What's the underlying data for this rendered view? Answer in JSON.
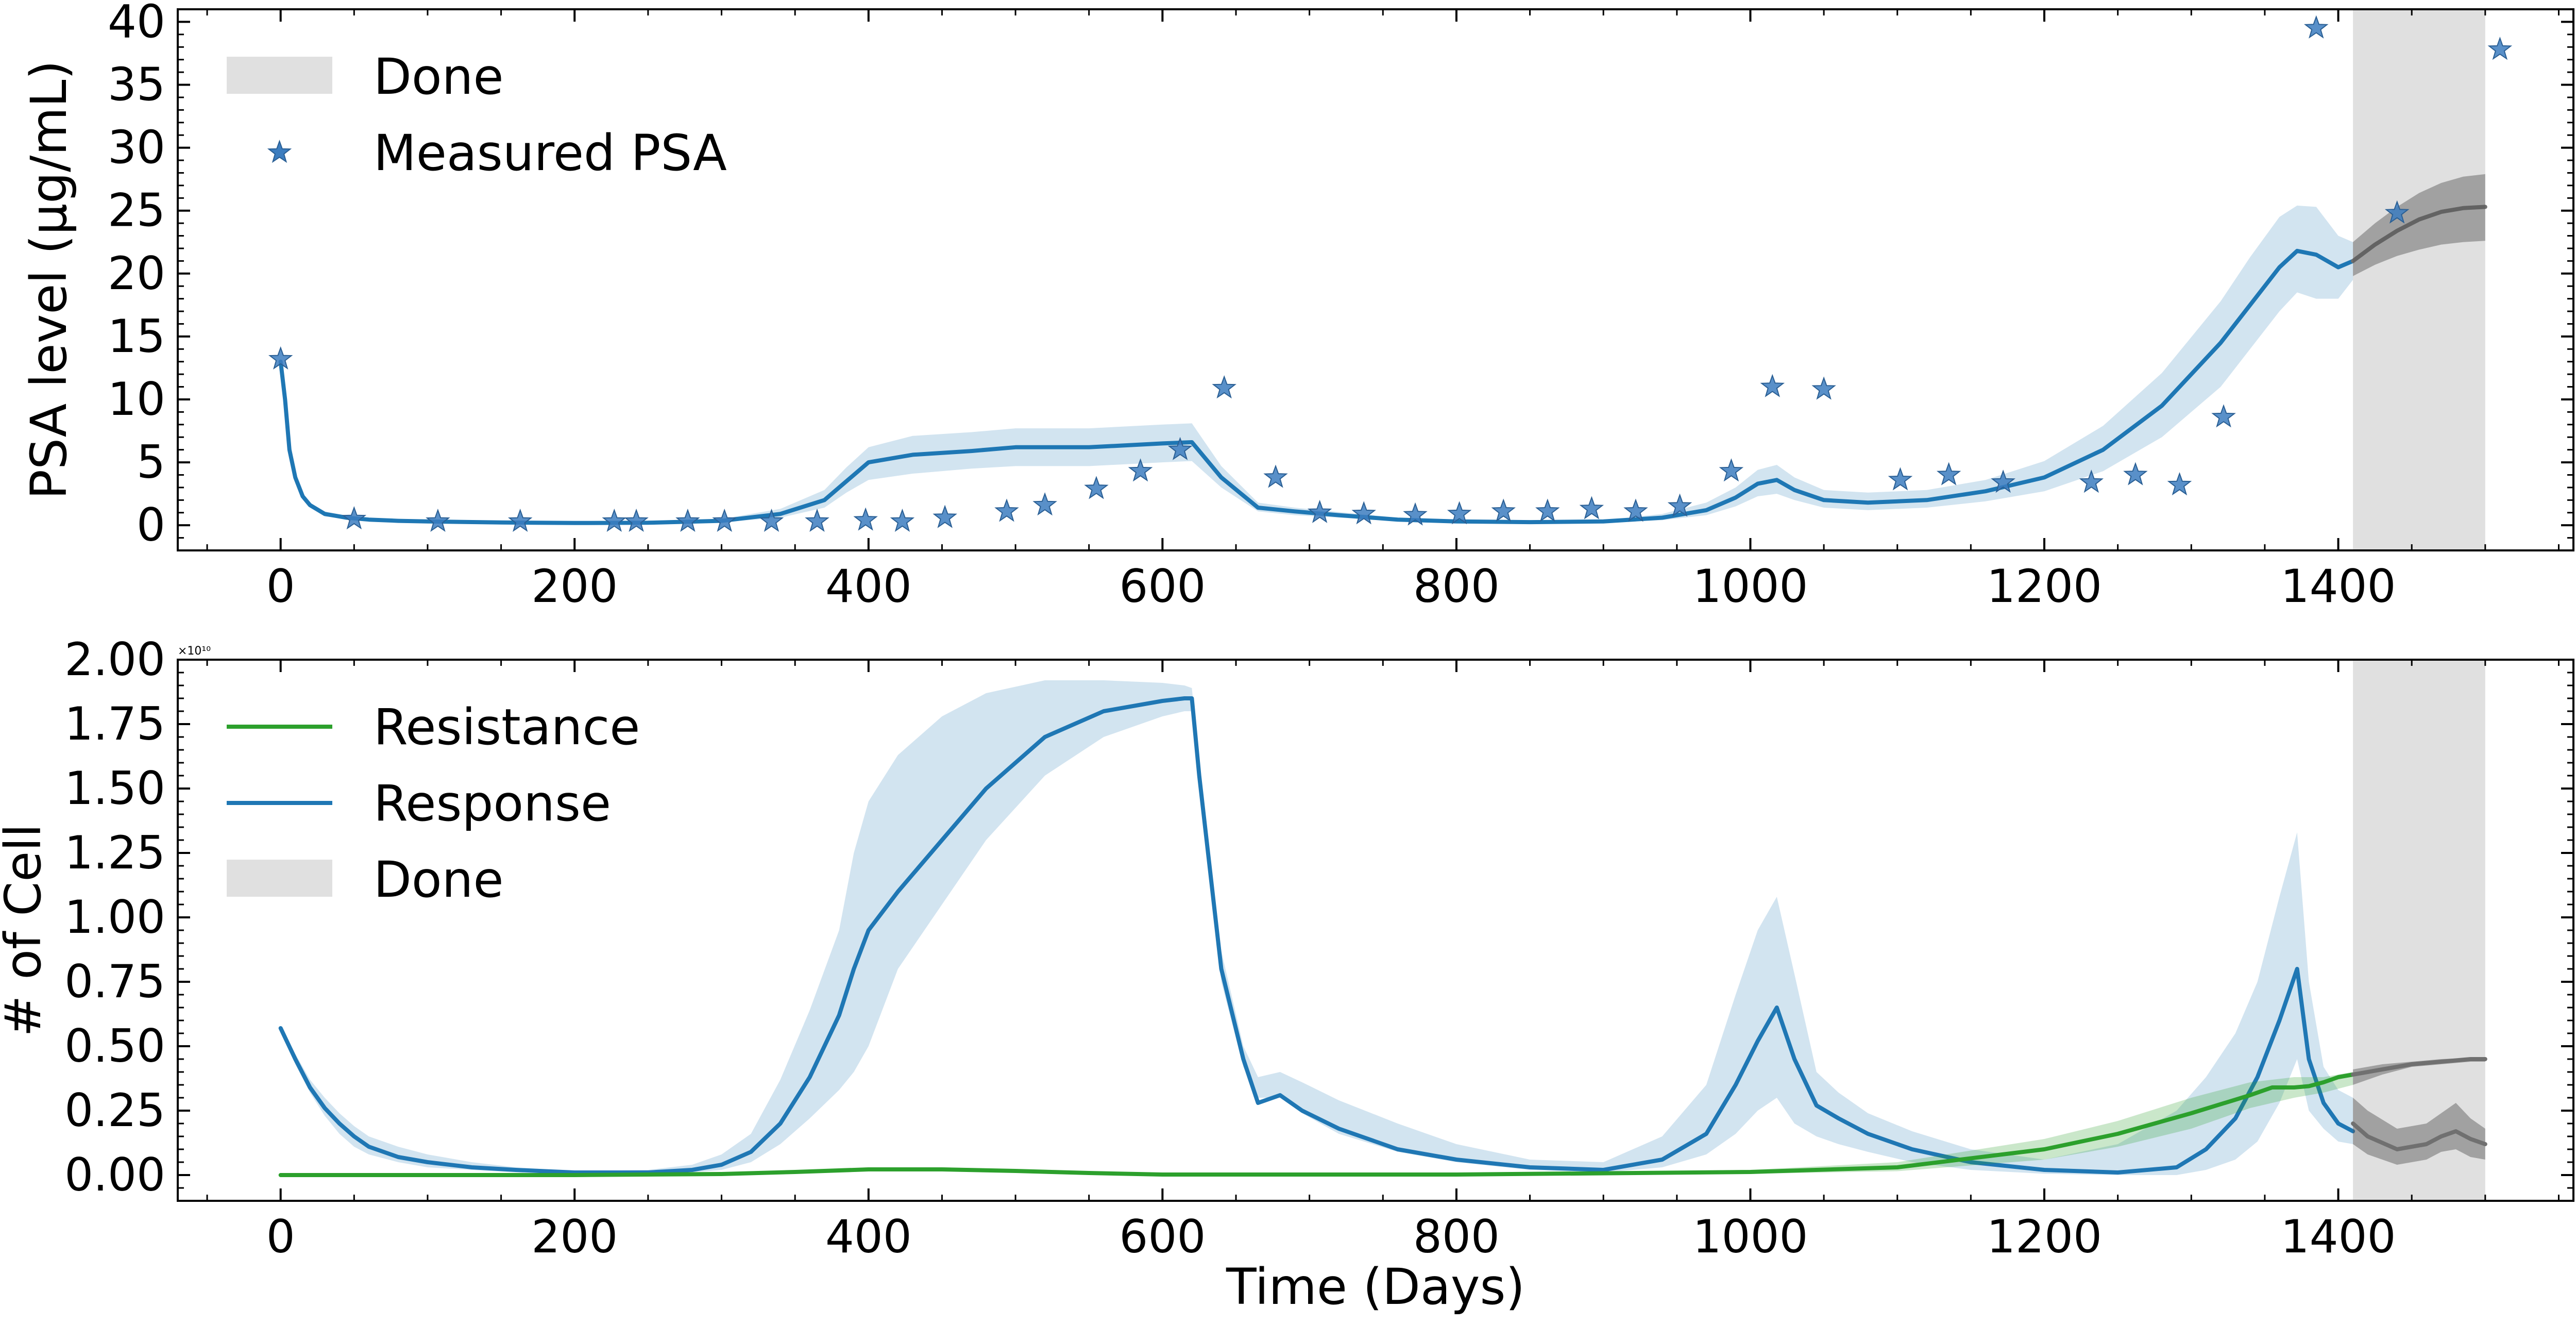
{
  "chart_data": [
    {
      "type": "line",
      "ylabel": "PSA level (μg/mL)",
      "xlabel": "",
      "xlim": [
        -70,
        1560
      ],
      "ylim": [
        -2,
        41
      ],
      "xticks": [
        0,
        200,
        400,
        600,
        800,
        1000,
        1200,
        1400
      ],
      "yticks": [
        0,
        5,
        10,
        15,
        20,
        25,
        30,
        35,
        40
      ],
      "x_tick_labels": [
        "0",
        "200",
        "400",
        "600",
        "800",
        "1000",
        "1200",
        "1400"
      ],
      "y_tick_labels": [
        "0",
        "5",
        "10",
        "15",
        "20",
        "25",
        "30",
        "35",
        "40"
      ],
      "legend_position": "upper-left",
      "legend": [
        {
          "label": "Done",
          "kind": "patch",
          "color": "#e0e0e0"
        },
        {
          "label": "Measured PSA",
          "kind": "star",
          "color": "#3c7dbf"
        }
      ],
      "done_region": {
        "x_start": 1410,
        "x_end": 1500
      },
      "series": [
        {
          "kind": "line",
          "color": "#1f77b4",
          "x": [
            0,
            3,
            6,
            10,
            15,
            20,
            30,
            45,
            60,
            80,
            100,
            150,
            200,
            250,
            300,
            340,
            370,
            385,
            400,
            430,
            470,
            500,
            550,
            600,
            620,
            640,
            665,
            690,
            720,
            760,
            800,
            850,
            900,
            940,
            970,
            990,
            1005,
            1018,
            1030,
            1050,
            1080,
            1120,
            1160,
            1200,
            1240,
            1280,
            1320,
            1340,
            1360,
            1372,
            1385,
            1400,
            1410
          ],
          "y": [
            13.0,
            10.0,
            6.0,
            3.8,
            2.3,
            1.6,
            0.9,
            0.6,
            0.45,
            0.35,
            0.3,
            0.22,
            0.18,
            0.2,
            0.35,
            0.9,
            2.0,
            3.5,
            5.0,
            5.6,
            5.9,
            6.2,
            6.2,
            6.5,
            6.6,
            3.8,
            1.4,
            1.1,
            0.8,
            0.45,
            0.3,
            0.25,
            0.3,
            0.6,
            1.2,
            2.2,
            3.3,
            3.6,
            2.8,
            2.0,
            1.8,
            2.0,
            2.7,
            3.8,
            6.0,
            9.5,
            14.5,
            17.5,
            20.5,
            21.8,
            21.5,
            20.5,
            21.0
          ]
        },
        {
          "kind": "band",
          "color": "#1f77b4",
          "opacity": 0.2,
          "x": [
            0,
            3,
            6,
            10,
            15,
            20,
            30,
            45,
            60,
            80,
            100,
            150,
            200,
            250,
            300,
            340,
            370,
            385,
            400,
            430,
            470,
            500,
            550,
            600,
            620,
            640,
            665,
            690,
            720,
            760,
            800,
            850,
            900,
            940,
            970,
            990,
            1005,
            1018,
            1030,
            1050,
            1080,
            1120,
            1160,
            1200,
            1240,
            1280,
            1320,
            1340,
            1360,
            1372,
            1385,
            1400,
            1410
          ],
          "lower": [
            12.8,
            9.8,
            5.8,
            3.6,
            2.1,
            1.4,
            0.7,
            0.5,
            0.35,
            0.25,
            0.2,
            0.15,
            0.12,
            0.14,
            0.25,
            0.6,
            1.4,
            2.6,
            3.6,
            4.1,
            4.5,
            4.7,
            4.7,
            5.0,
            5.1,
            3.0,
            1.1,
            0.8,
            0.6,
            0.35,
            0.22,
            0.18,
            0.22,
            0.4,
            0.8,
            1.5,
            2.3,
            2.5,
            2.0,
            1.4,
            1.2,
            1.4,
            1.9,
            2.7,
            4.3,
            7.0,
            11.0,
            14.0,
            17.0,
            18.5,
            18.0,
            18.0,
            19.5
          ],
          "upper": [
            13.2,
            10.2,
            6.2,
            4.0,
            2.5,
            1.8,
            1.1,
            0.75,
            0.6,
            0.45,
            0.4,
            0.3,
            0.25,
            0.28,
            0.5,
            1.3,
            2.8,
            4.6,
            6.2,
            7.1,
            7.4,
            7.7,
            7.7,
            8.0,
            8.1,
            4.7,
            1.8,
            1.4,
            1.05,
            0.6,
            0.4,
            0.35,
            0.4,
            0.9,
            1.8,
            3.0,
            4.4,
            4.8,
            3.8,
            2.8,
            2.6,
            2.8,
            3.6,
            5.1,
            7.9,
            12.1,
            17.8,
            21.3,
            24.5,
            25.4,
            25.3,
            23.0,
            22.5
          ]
        },
        {
          "kind": "line",
          "color": "#707070",
          "x": [
            1410,
            1425,
            1440,
            1455,
            1470,
            1485,
            1500
          ],
          "y": [
            21.0,
            22.3,
            23.4,
            24.3,
            24.9,
            25.2,
            25.3
          ]
        },
        {
          "kind": "band",
          "color": "#555555",
          "opacity": 0.45,
          "x": [
            1410,
            1425,
            1440,
            1455,
            1470,
            1485,
            1500
          ],
          "lower": [
            19.8,
            20.7,
            21.4,
            21.9,
            22.3,
            22.5,
            22.6
          ],
          "upper": [
            22.5,
            24.0,
            25.3,
            26.4,
            27.2,
            27.7,
            27.9
          ]
        },
        {
          "kind": "scatter",
          "marker": "star",
          "name": "Measured PSA",
          "color": "#3c7dbf",
          "x": [
            0,
            50,
            107,
            163,
            227,
            242,
            277,
            302,
            334,
            365,
            398,
            423,
            452,
            494,
            520,
            555,
            585,
            612,
            642,
            677,
            707,
            737,
            772,
            802,
            832,
            862,
            892,
            922,
            952,
            987,
            1015,
            1050,
            1102,
            1135,
            1172,
            1232,
            1262,
            1292,
            1322,
            1385,
            1440,
            1510
          ],
          "y": [
            13.2,
            0.5,
            0.3,
            0.3,
            0.3,
            0.3,
            0.3,
            0.3,
            0.3,
            0.3,
            0.4,
            0.3,
            0.6,
            1.1,
            1.6,
            2.9,
            4.3,
            6.0,
            10.9,
            3.8,
            1.0,
            0.9,
            0.8,
            0.9,
            1.1,
            1.1,
            1.3,
            1.1,
            1.5,
            4.3,
            11.0,
            10.8,
            3.6,
            4.0,
            3.4,
            3.4,
            4.0,
            3.2,
            8.6,
            39.5,
            24.8,
            37.8
          ]
        }
      ]
    },
    {
      "type": "line",
      "xlabel": "Time (Days)",
      "ylabel": "# of Cell",
      "y_offset_label": "×10¹⁰",
      "xlim": [
        -70,
        1560
      ],
      "ylim": [
        -0.1,
        2.0
      ],
      "xticks": [
        0,
        200,
        400,
        600,
        800,
        1000,
        1200,
        1400
      ],
      "yticks": [
        0.0,
        0.25,
        0.5,
        0.75,
        1.0,
        1.25,
        1.5,
        1.75,
        2.0
      ],
      "x_tick_labels": [
        "0",
        "200",
        "400",
        "600",
        "800",
        "1000",
        "1200",
        "1400"
      ],
      "y_tick_labels": [
        "0.00",
        "0.25",
        "0.50",
        "0.75",
        "1.00",
        "1.25",
        "1.50",
        "1.75",
        "2.00"
      ],
      "legend_position": "upper-left",
      "legend": [
        {
          "label": "Resistance",
          "kind": "line",
          "color": "#2ca02c"
        },
        {
          "label": "Response",
          "kind": "line",
          "color": "#1f77b4"
        },
        {
          "label": "Done",
          "kind": "patch",
          "color": "#e0e0e0"
        }
      ],
      "done_region": {
        "x_start": 1410,
        "x_end": 1500
      },
      "series": [
        {
          "kind": "band",
          "color": "#1f77b4",
          "opacity": 0.2,
          "x": [
            0,
            10,
            20,
            30,
            40,
            50,
            60,
            80,
            100,
            130,
            160,
            200,
            250,
            280,
            300,
            320,
            340,
            360,
            380,
            390,
            400,
            420,
            450,
            480,
            520,
            560,
            600,
            615,
            620,
            625,
            640,
            655,
            665,
            680,
            695,
            720,
            760,
            800,
            850,
            900,
            940,
            970,
            990,
            1005,
            1018,
            1030,
            1045,
            1060,
            1080,
            1110,
            1150,
            1200,
            1250,
            1290,
            1310,
            1330,
            1345,
            1360,
            1372,
            1380,
            1390,
            1400,
            1410
          ],
          "lower": [
            0.56,
            0.43,
            0.32,
            0.23,
            0.16,
            0.11,
            0.08,
            0.05,
            0.03,
            0.02,
            0.01,
            0.005,
            0.005,
            0.01,
            0.02,
            0.05,
            0.12,
            0.22,
            0.33,
            0.4,
            0.5,
            0.8,
            1.05,
            1.3,
            1.55,
            1.7,
            1.78,
            1.8,
            1.8,
            1.5,
            0.75,
            0.42,
            0.3,
            0.3,
            0.24,
            0.16,
            0.09,
            0.05,
            0.02,
            0.01,
            0.03,
            0.08,
            0.16,
            0.25,
            0.3,
            0.2,
            0.15,
            0.12,
            0.09,
            0.05,
            0.02,
            0.005,
            0.0,
            0.0,
            0.02,
            0.06,
            0.13,
            0.28,
            0.45,
            0.25,
            0.18,
            0.13,
            0.12
          ],
          "upper": [
            0.58,
            0.47,
            0.37,
            0.3,
            0.24,
            0.19,
            0.15,
            0.11,
            0.08,
            0.05,
            0.03,
            0.015,
            0.02,
            0.04,
            0.08,
            0.16,
            0.37,
            0.64,
            0.95,
            1.25,
            1.45,
            1.63,
            1.78,
            1.87,
            1.92,
            1.92,
            1.91,
            1.9,
            1.89,
            1.6,
            0.87,
            0.5,
            0.38,
            0.4,
            0.36,
            0.29,
            0.2,
            0.12,
            0.06,
            0.05,
            0.15,
            0.35,
            0.7,
            0.95,
            1.08,
            0.78,
            0.4,
            0.32,
            0.24,
            0.17,
            0.1,
            0.06,
            0.12,
            0.25,
            0.38,
            0.55,
            0.75,
            1.08,
            1.33,
            0.75,
            0.42,
            0.33,
            0.3
          ]
        },
        {
          "kind": "line",
          "color": "#1f77b4",
          "x": [
            0,
            10,
            20,
            30,
            40,
            50,
            60,
            80,
            100,
            130,
            160,
            200,
            250,
            280,
            300,
            320,
            340,
            360,
            380,
            390,
            400,
            420,
            450,
            480,
            520,
            560,
            600,
            615,
            620,
            625,
            640,
            655,
            665,
            680,
            695,
            720,
            760,
            800,
            850,
            900,
            940,
            970,
            990,
            1005,
            1018,
            1030,
            1045,
            1060,
            1080,
            1110,
            1150,
            1200,
            1250,
            1290,
            1310,
            1330,
            1345,
            1360,
            1372,
            1380,
            1390,
            1400,
            1410
          ],
          "y": [
            0.57,
            0.45,
            0.34,
            0.26,
            0.2,
            0.15,
            0.11,
            0.07,
            0.05,
            0.03,
            0.02,
            0.01,
            0.01,
            0.02,
            0.04,
            0.09,
            0.2,
            0.38,
            0.62,
            0.8,
            0.95,
            1.1,
            1.3,
            1.5,
            1.7,
            1.8,
            1.84,
            1.85,
            1.85,
            1.55,
            0.8,
            0.45,
            0.28,
            0.31,
            0.25,
            0.18,
            0.1,
            0.06,
            0.03,
            0.02,
            0.06,
            0.16,
            0.35,
            0.52,
            0.65,
            0.45,
            0.27,
            0.22,
            0.16,
            0.1,
            0.05,
            0.02,
            0.01,
            0.03,
            0.1,
            0.22,
            0.38,
            0.6,
            0.8,
            0.45,
            0.28,
            0.2,
            0.17
          ]
        },
        {
          "kind": "band",
          "color": "#2ca02c",
          "opacity": 0.25,
          "x": [
            0,
            200,
            300,
            350,
            400,
            450,
            500,
            550,
            600,
            800,
            1000,
            1100,
            1200,
            1250,
            1300,
            1340,
            1370,
            1390,
            1410
          ],
          "lower": [
            0.0,
            0.0,
            0.002,
            0.008,
            0.015,
            0.015,
            0.01,
            0.005,
            0.0,
            0.0,
            0.005,
            0.015,
            0.06,
            0.11,
            0.18,
            0.26,
            0.3,
            0.32,
            0.35
          ],
          "upper": [
            0.0,
            0.0,
            0.006,
            0.015,
            0.03,
            0.03,
            0.022,
            0.012,
            0.005,
            0.005,
            0.02,
            0.05,
            0.14,
            0.21,
            0.3,
            0.36,
            0.38,
            0.38,
            0.4
          ]
        },
        {
          "kind": "line",
          "color": "#2ca02c",
          "x": [
            0,
            200,
            300,
            350,
            400,
            450,
            500,
            550,
            600,
            800,
            1000,
            1100,
            1200,
            1250,
            1300,
            1340,
            1355,
            1370,
            1380,
            1390,
            1400,
            1410
          ],
          "y": [
            0.0,
            0.0,
            0.004,
            0.012,
            0.022,
            0.022,
            0.016,
            0.008,
            0.002,
            0.002,
            0.012,
            0.03,
            0.1,
            0.16,
            0.24,
            0.31,
            0.34,
            0.34,
            0.345,
            0.36,
            0.38,
            0.39
          ]
        },
        {
          "kind": "band",
          "color": "#555555",
          "opacity": 0.45,
          "x": [
            1410,
            1430,
            1450,
            1470,
            1490,
            1500
          ],
          "lower": [
            0.35,
            0.39,
            0.42,
            0.43,
            0.44,
            0.44
          ],
          "upper": [
            0.41,
            0.43,
            0.44,
            0.45,
            0.455,
            0.455
          ]
        },
        {
          "kind": "line",
          "color": "#707070",
          "x": [
            1410,
            1430,
            1450,
            1470,
            1490,
            1500
          ],
          "y": [
            0.39,
            0.41,
            0.43,
            0.44,
            0.45,
            0.45
          ]
        },
        {
          "kind": "band",
          "color": "#555555",
          "opacity": 0.45,
          "x": [
            1410,
            1420,
            1440,
            1460,
            1470,
            1480,
            1490,
            1500
          ],
          "lower": [
            0.12,
            0.08,
            0.04,
            0.06,
            0.09,
            0.1,
            0.07,
            0.06
          ],
          "upper": [
            0.3,
            0.25,
            0.18,
            0.2,
            0.24,
            0.28,
            0.22,
            0.18
          ]
        },
        {
          "kind": "line",
          "color": "#707070",
          "x": [
            1410,
            1420,
            1440,
            1460,
            1470,
            1480,
            1490,
            1500
          ],
          "y": [
            0.2,
            0.15,
            0.1,
            0.12,
            0.15,
            0.17,
            0.14,
            0.12
          ]
        }
      ]
    }
  ]
}
